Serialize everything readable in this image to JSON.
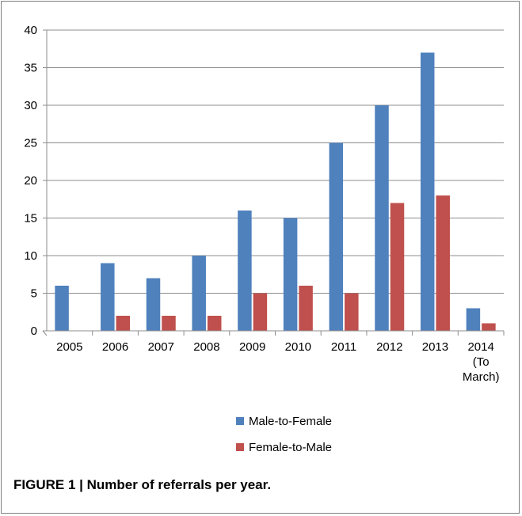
{
  "chart_data": {
    "type": "bar",
    "categories": [
      [
        "2005"
      ],
      [
        "2006"
      ],
      [
        "2007"
      ],
      [
        "2008"
      ],
      [
        "2009"
      ],
      [
        "2010"
      ],
      [
        "2011"
      ],
      [
        "2012"
      ],
      [
        "2013"
      ],
      [
        "2014",
        "(To",
        "March)"
      ]
    ],
    "series": [
      {
        "name": "Male-to-Female",
        "color": "#4f81bd",
        "values": [
          6,
          9,
          7,
          10,
          16,
          15,
          25,
          30,
          37,
          3
        ]
      },
      {
        "name": "Female-to-Male",
        "color": "#c0504d",
        "values": [
          0,
          2,
          2,
          2,
          5,
          6,
          5,
          17,
          18,
          1
        ]
      }
    ],
    "ylim": [
      0,
      40
    ],
    "yticks": [
      0,
      5,
      10,
      15,
      20,
      25,
      30,
      35,
      40
    ],
    "grid": true,
    "legend_position": "bottom",
    "gridline_color": "#8c8c8c"
  },
  "caption": "FIGURE 1 | Number of referrals per year."
}
